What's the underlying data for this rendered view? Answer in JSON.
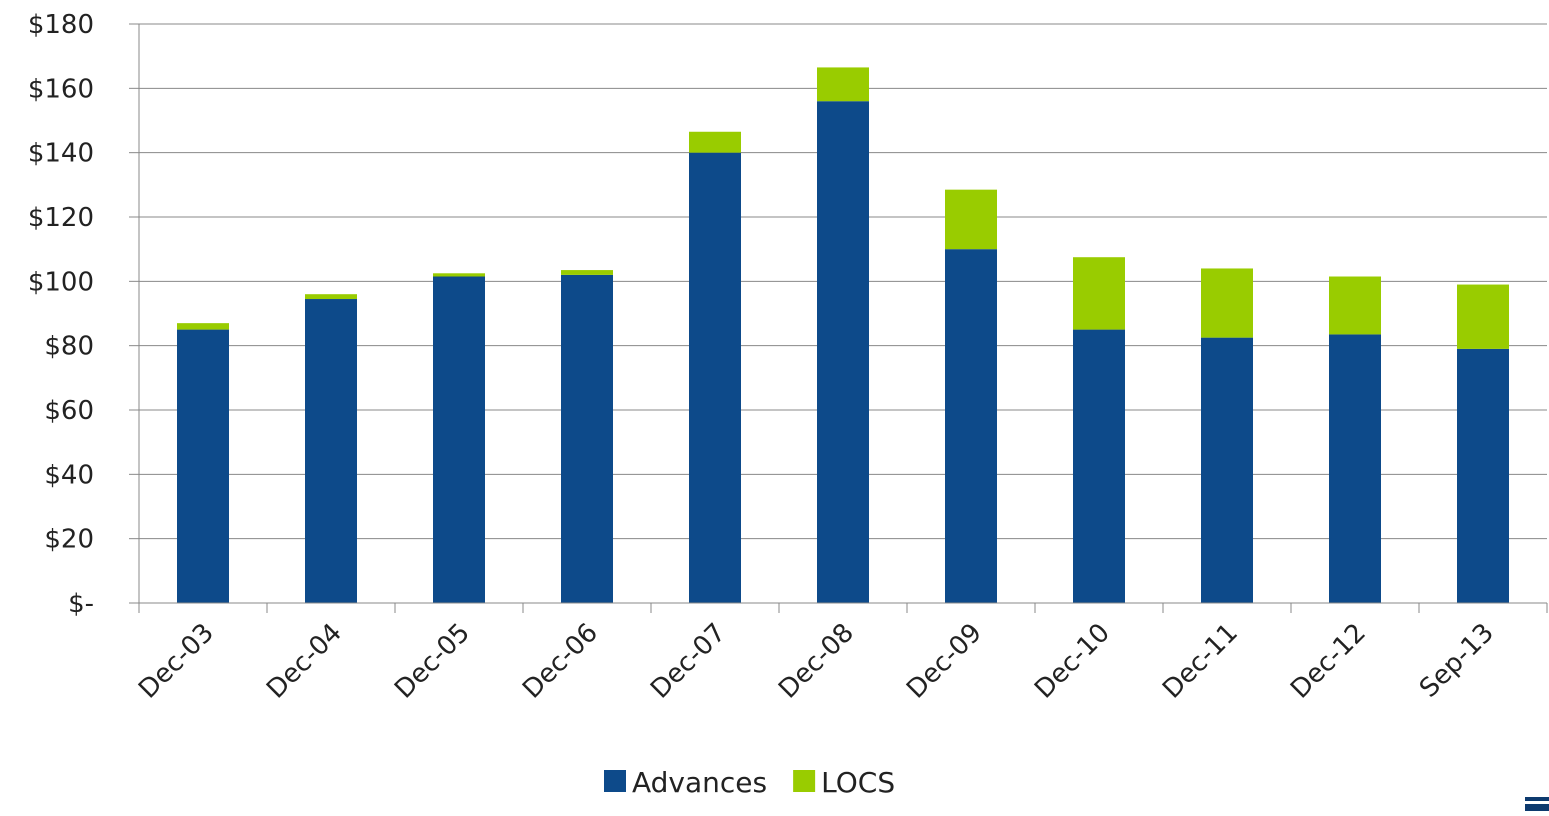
{
  "chart_data": {
    "type": "bar",
    "stacked": true,
    "categories": [
      "Dec-03",
      "Dec-04",
      "Dec-05",
      "Dec-06",
      "Dec-07",
      "Dec-08",
      "Dec-09",
      "Dec-10",
      "Dec-11",
      "Dec-12",
      "Sep-13"
    ],
    "series": [
      {
        "name": "Advances",
        "color": "#0d4a8a",
        "values": [
          85,
          94.5,
          101.5,
          102,
          140,
          156,
          110,
          85,
          82.5,
          83.5,
          79
        ]
      },
      {
        "name": "LOCS",
        "color": "#99cc00",
        "values": [
          2,
          1.5,
          1,
          1.5,
          6.5,
          10.5,
          18.5,
          22.5,
          21.5,
          18,
          20
        ]
      }
    ],
    "ylim": [
      0,
      180
    ],
    "yticks": [
      0,
      20,
      40,
      60,
      80,
      100,
      120,
      140,
      160,
      180
    ],
    "ytick_labels": [
      "$-",
      "$20",
      "$40",
      "$60",
      "$80",
      "$100",
      "$120",
      "$140",
      "$160",
      "$180"
    ],
    "grid": "horizontal",
    "legend_position": "bottom"
  },
  "colors": {
    "gridline": "#888888",
    "axis": "#888888",
    "corner_mark": "#0d3a6e"
  }
}
